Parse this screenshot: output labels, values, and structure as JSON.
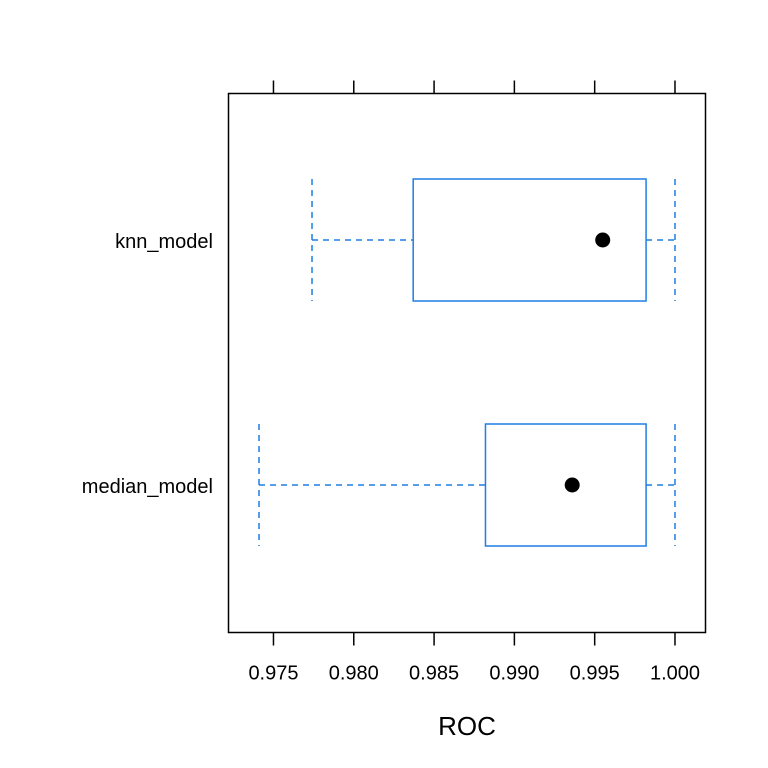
{
  "chart_data": {
    "type": "box",
    "orientation": "horizontal",
    "xlabel": "ROC",
    "xlim": [
      0.9722,
      1.0019
    ],
    "x_ticks": [
      0.975,
      0.98,
      0.985,
      0.99,
      0.995,
      1.0
    ],
    "x_tick_labels": [
      "0.975",
      "0.980",
      "0.985",
      "0.990",
      "0.995",
      "1.000"
    ],
    "categories": [
      "knn_model",
      "median_model"
    ],
    "boxes": [
      {
        "name": "knn_model",
        "whisker_low": 0.9774,
        "q1": 0.9837,
        "median": 0.9955,
        "q3": 0.9982,
        "whisker_high": 1.0
      },
      {
        "name": "median_model",
        "whisker_low": 0.9741,
        "q1": 0.9882,
        "median": 0.9936,
        "q3": 0.9982,
        "whisker_high": 1.0
      }
    ],
    "box_color": "#1E7FE5",
    "median_marker_color": "#000000",
    "grid": false
  }
}
